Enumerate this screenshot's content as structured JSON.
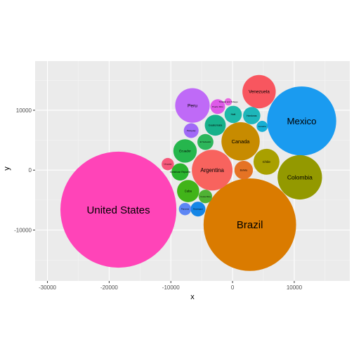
{
  "chart_data": {
    "type": "scatter",
    "subtype": "packed-bubble",
    "title": "",
    "xlabel": "x",
    "ylabel": "y",
    "xlim": [
      -32000,
      19000
    ],
    "ylim": [
      -18500,
      18200
    ],
    "x_ticks": [
      -30000,
      -20000,
      -10000,
      0,
      10000
    ],
    "x_tick_labels": [
      "-30000",
      "-20000",
      "-10000",
      "0",
      "10000"
    ],
    "y_ticks": [
      -10000,
      0,
      10000
    ],
    "y_tick_labels": [
      "-10000",
      "0",
      "10000"
    ],
    "grid": true,
    "legend": "none",
    "bubbles": [
      {
        "label": "United States",
        "x": -18500,
        "y": -6600,
        "r": 9400,
        "color": "#FF44B8"
      },
      {
        "label": "Brazil",
        "x": 2800,
        "y": -9100,
        "r": 7500,
        "color": "#DA7B00"
      },
      {
        "label": "Mexico",
        "x": 11200,
        "y": 8200,
        "r": 5600,
        "color": "#1A9BF0"
      },
      {
        "label": "Colombia",
        "x": 10900,
        "y": -1200,
        "r": 3600,
        "color": "#939900"
      },
      {
        "label": "Argentina",
        "x": -3300,
        "y": 0,
        "r": 3300,
        "color": "#F8635E"
      },
      {
        "label": "Peru",
        "x": -6500,
        "y": 10800,
        "r": 2800,
        "color": "#BF6AF7"
      },
      {
        "label": "Canada",
        "x": 1300,
        "y": 4800,
        "r": 3100,
        "color": "#C78B00"
      },
      {
        "label": "Venezuela",
        "x": 4300,
        "y": 13100,
        "r": 2700,
        "color": "#F8565F"
      },
      {
        "label": "Chile",
        "x": 5500,
        "y": 1400,
        "r": 2100,
        "color": "#A9A000"
      },
      {
        "label": "Ecuador",
        "x": -7700,
        "y": 3200,
        "r": 1900,
        "color": "#26B64D"
      },
      {
        "label": "Guatemala",
        "x": -2800,
        "y": 7500,
        "r": 1700,
        "color": "#17B18B"
      },
      {
        "label": "Cuba",
        "x": -7200,
        "y": -3500,
        "r": 1800,
        "color": "#41B419"
      },
      {
        "label": "Bolivia",
        "x": 1800,
        "y": 0,
        "r": 1500,
        "color": "#E57324"
      },
      {
        "label": "Haiti",
        "x": 100,
        "y": 9300,
        "r": 1400,
        "color": "#1DB9A9"
      },
      {
        "label": "Honduras",
        "x": 3100,
        "y": 9100,
        "r": 1400,
        "color": "#1EB6BA"
      },
      {
        "label": "Dominican Republic",
        "x": -8500,
        "y": -300,
        "r": 1400,
        "color": "#2AB42E"
      },
      {
        "label": "Paraguay",
        "x": -6700,
        "y": 6600,
        "r": 1200,
        "color": "#A169F7"
      },
      {
        "label": "El Salvador",
        "x": -4400,
        "y": 4700,
        "r": 1300,
        "color": "#2DB65B"
      },
      {
        "label": "Nicaragua",
        "x": -5600,
        "y": -6500,
        "r": 1200,
        "color": "#1586E6"
      },
      {
        "label": "Costa Rica",
        "x": -4400,
        "y": -4400,
        "r": 1100,
        "color": "#4FB234"
      },
      {
        "label": "Puerto Rico",
        "x": -2400,
        "y": 10600,
        "r": 1200,
        "color": "#DE5AE8"
      },
      {
        "label": "Panama",
        "x": -7700,
        "y": -6500,
        "r": 1000,
        "color": "#5D86F4"
      },
      {
        "label": "Uruguay",
        "x": -10500,
        "y": 1000,
        "r": 1000,
        "color": "#F5587A"
      },
      {
        "label": "Jamaica",
        "x": 4800,
        "y": 7300,
        "r": 900,
        "color": "#16AFD4"
      },
      {
        "label": "Trinidad and Tobago",
        "x": -700,
        "y": 11400,
        "r": 600,
        "color": "#E968E0"
      }
    ]
  }
}
